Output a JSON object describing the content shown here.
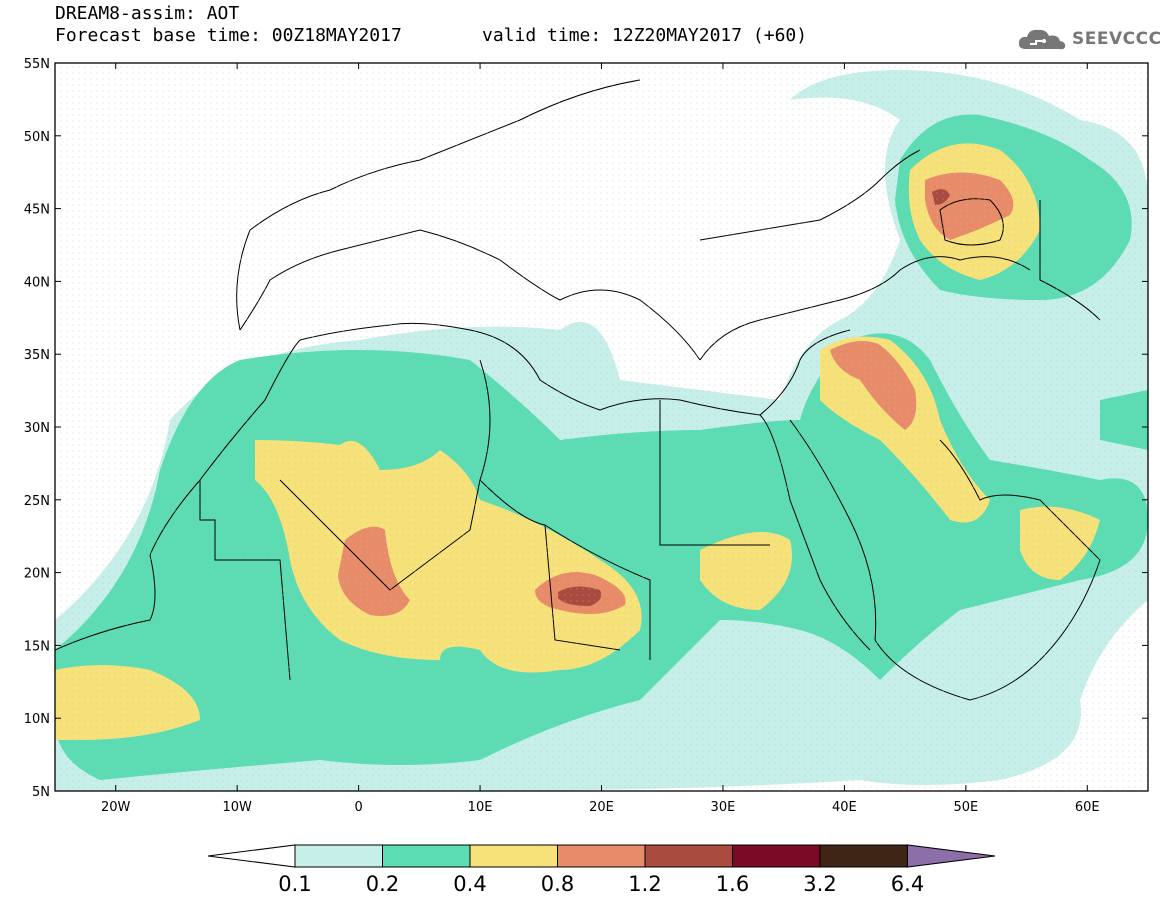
{
  "header": {
    "title": "DREAM8-assim: AOT",
    "base_time": "Forecast base time: 00Z18MAY2017",
    "valid_time": "valid time: 12Z20MAY2017 (+60)"
  },
  "logo": {
    "text": "SEEVCCC",
    "icon": "cloud-icon"
  },
  "map": {
    "lat_labels": [
      "55N",
      "50N",
      "45N",
      "40N",
      "35N",
      "30N",
      "25N",
      "20N",
      "15N",
      "10N",
      "5N"
    ],
    "lon_labels": [
      "20W",
      "10W",
      "0",
      "10E",
      "20E",
      "30E",
      "40E",
      "50E",
      "60E"
    ],
    "lon_range": [
      -25,
      65
    ],
    "lat_range": [
      5,
      55
    ]
  },
  "colorbar": {
    "ticks": [
      "0.1",
      "0.2",
      "0.4",
      "0.8",
      "1.2",
      "1.6",
      "3.2",
      "6.4"
    ],
    "colors": [
      "#c5efe8",
      "#5bdcb2",
      "#f7e27a",
      "#e88b68",
      "#a94b3e",
      "#7a0a25",
      "#3e2516",
      "#8c6ea8"
    ],
    "under_color": "#ffffff"
  }
}
